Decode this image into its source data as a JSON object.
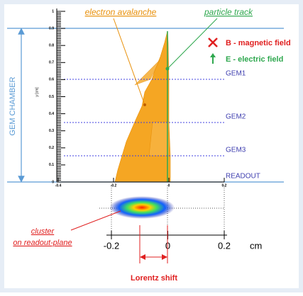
{
  "labels": {
    "electron_avalanche": "electron avalanche",
    "particle_track": "particle track",
    "b_field": "B - magnetic field",
    "e_field": "E - electric field",
    "gem_chamber": "GEM CHAMBER",
    "gem1": "GEM1",
    "gem2": "GEM2",
    "gem3": "GEM3",
    "readout": "READOUT",
    "y_axis": "y [cm]",
    "cluster": "cluster",
    "on_readout_plane": "on readout-plane",
    "lorentz_shift": "Lorentz shift",
    "unit": "cm"
  },
  "upper_axis": {
    "yticks": [
      "0",
      "0.1",
      "0.2",
      "0.3",
      "0.4",
      "0.5",
      "0.6",
      "0.7",
      "0.8",
      "0.9",
      "1"
    ],
    "xticks": [
      "-0.4",
      "-0.2",
      "0",
      "0.2"
    ]
  },
  "lower_axis": {
    "xticks": [
      "-0.2",
      "0",
      "0.2"
    ]
  }
}
